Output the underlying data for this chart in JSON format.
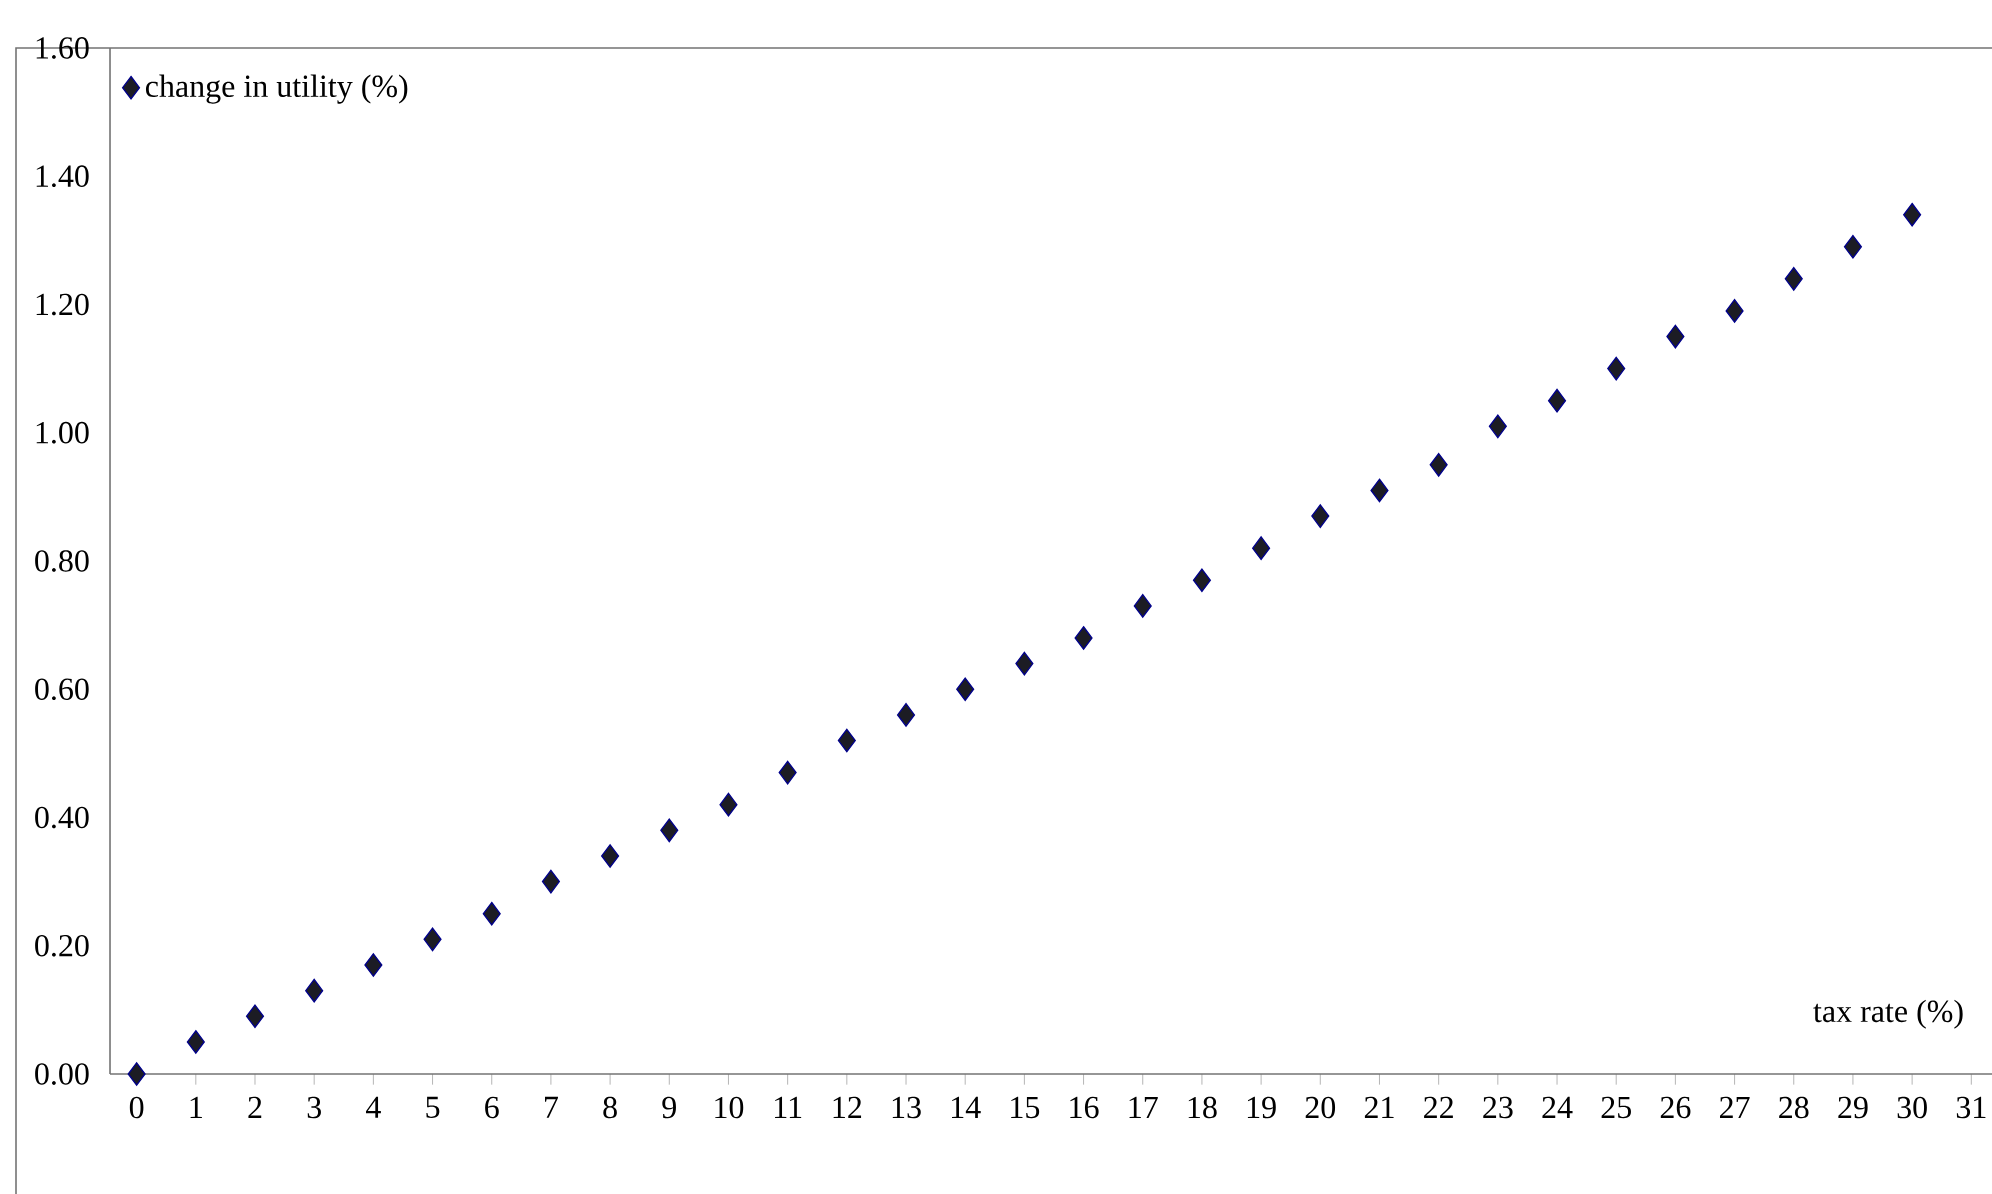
{
  "chart_data": {
    "type": "scatter",
    "xlabel": "tax rate (%)",
    "x": [
      0,
      1,
      2,
      3,
      4,
      5,
      6,
      7,
      8,
      9,
      10,
      11,
      12,
      13,
      14,
      15,
      16,
      17,
      18,
      19,
      20,
      21,
      22,
      23,
      24,
      25,
      26,
      27,
      28,
      29,
      30
    ],
    "series": [
      {
        "name": "change in utility (%)",
        "color": "#1c1c24",
        "values": [
          0,
          0.05,
          0.09,
          0.13,
          0.17,
          0.21,
          0.25,
          0.3,
          0.34,
          0.38,
          0.42,
          0.47,
          0.52,
          0.56,
          0.6,
          0.64,
          0.68,
          0.73,
          0.77,
          0.82,
          0.87,
          0.91,
          0.95,
          1.01,
          1.05,
          1.1,
          1.15,
          1.19,
          1.24,
          1.29,
          1.34
        ]
      }
    ],
    "xlim": [
      -0.45,
      31.35
    ],
    "ylim": [
      0,
      1.6
    ],
    "xticks": [
      0,
      1,
      2,
      3,
      4,
      5,
      6,
      7,
      8,
      9,
      10,
      11,
      12,
      13,
      14,
      15,
      16,
      17,
      18,
      19,
      20,
      21,
      22,
      23,
      24,
      25,
      26,
      27,
      28,
      29,
      30,
      31
    ],
    "yticks": [
      {
        "value": 0,
        "label": "0.00"
      },
      {
        "value": 0.2,
        "label": "0.20"
      },
      {
        "value": 0.4,
        "label": "0.40"
      },
      {
        "value": 0.6,
        "label": "0.60"
      },
      {
        "value": 0.8,
        "label": "0.80"
      },
      {
        "value": 1.0,
        "label": "1.00"
      },
      {
        "value": 1.2,
        "label": "1.20"
      },
      {
        "value": 1.4,
        "label": "1.40"
      },
      {
        "value": 1.6,
        "label": "1.60"
      }
    ],
    "legend": "top left",
    "marker": "diamond",
    "grid": false
  }
}
